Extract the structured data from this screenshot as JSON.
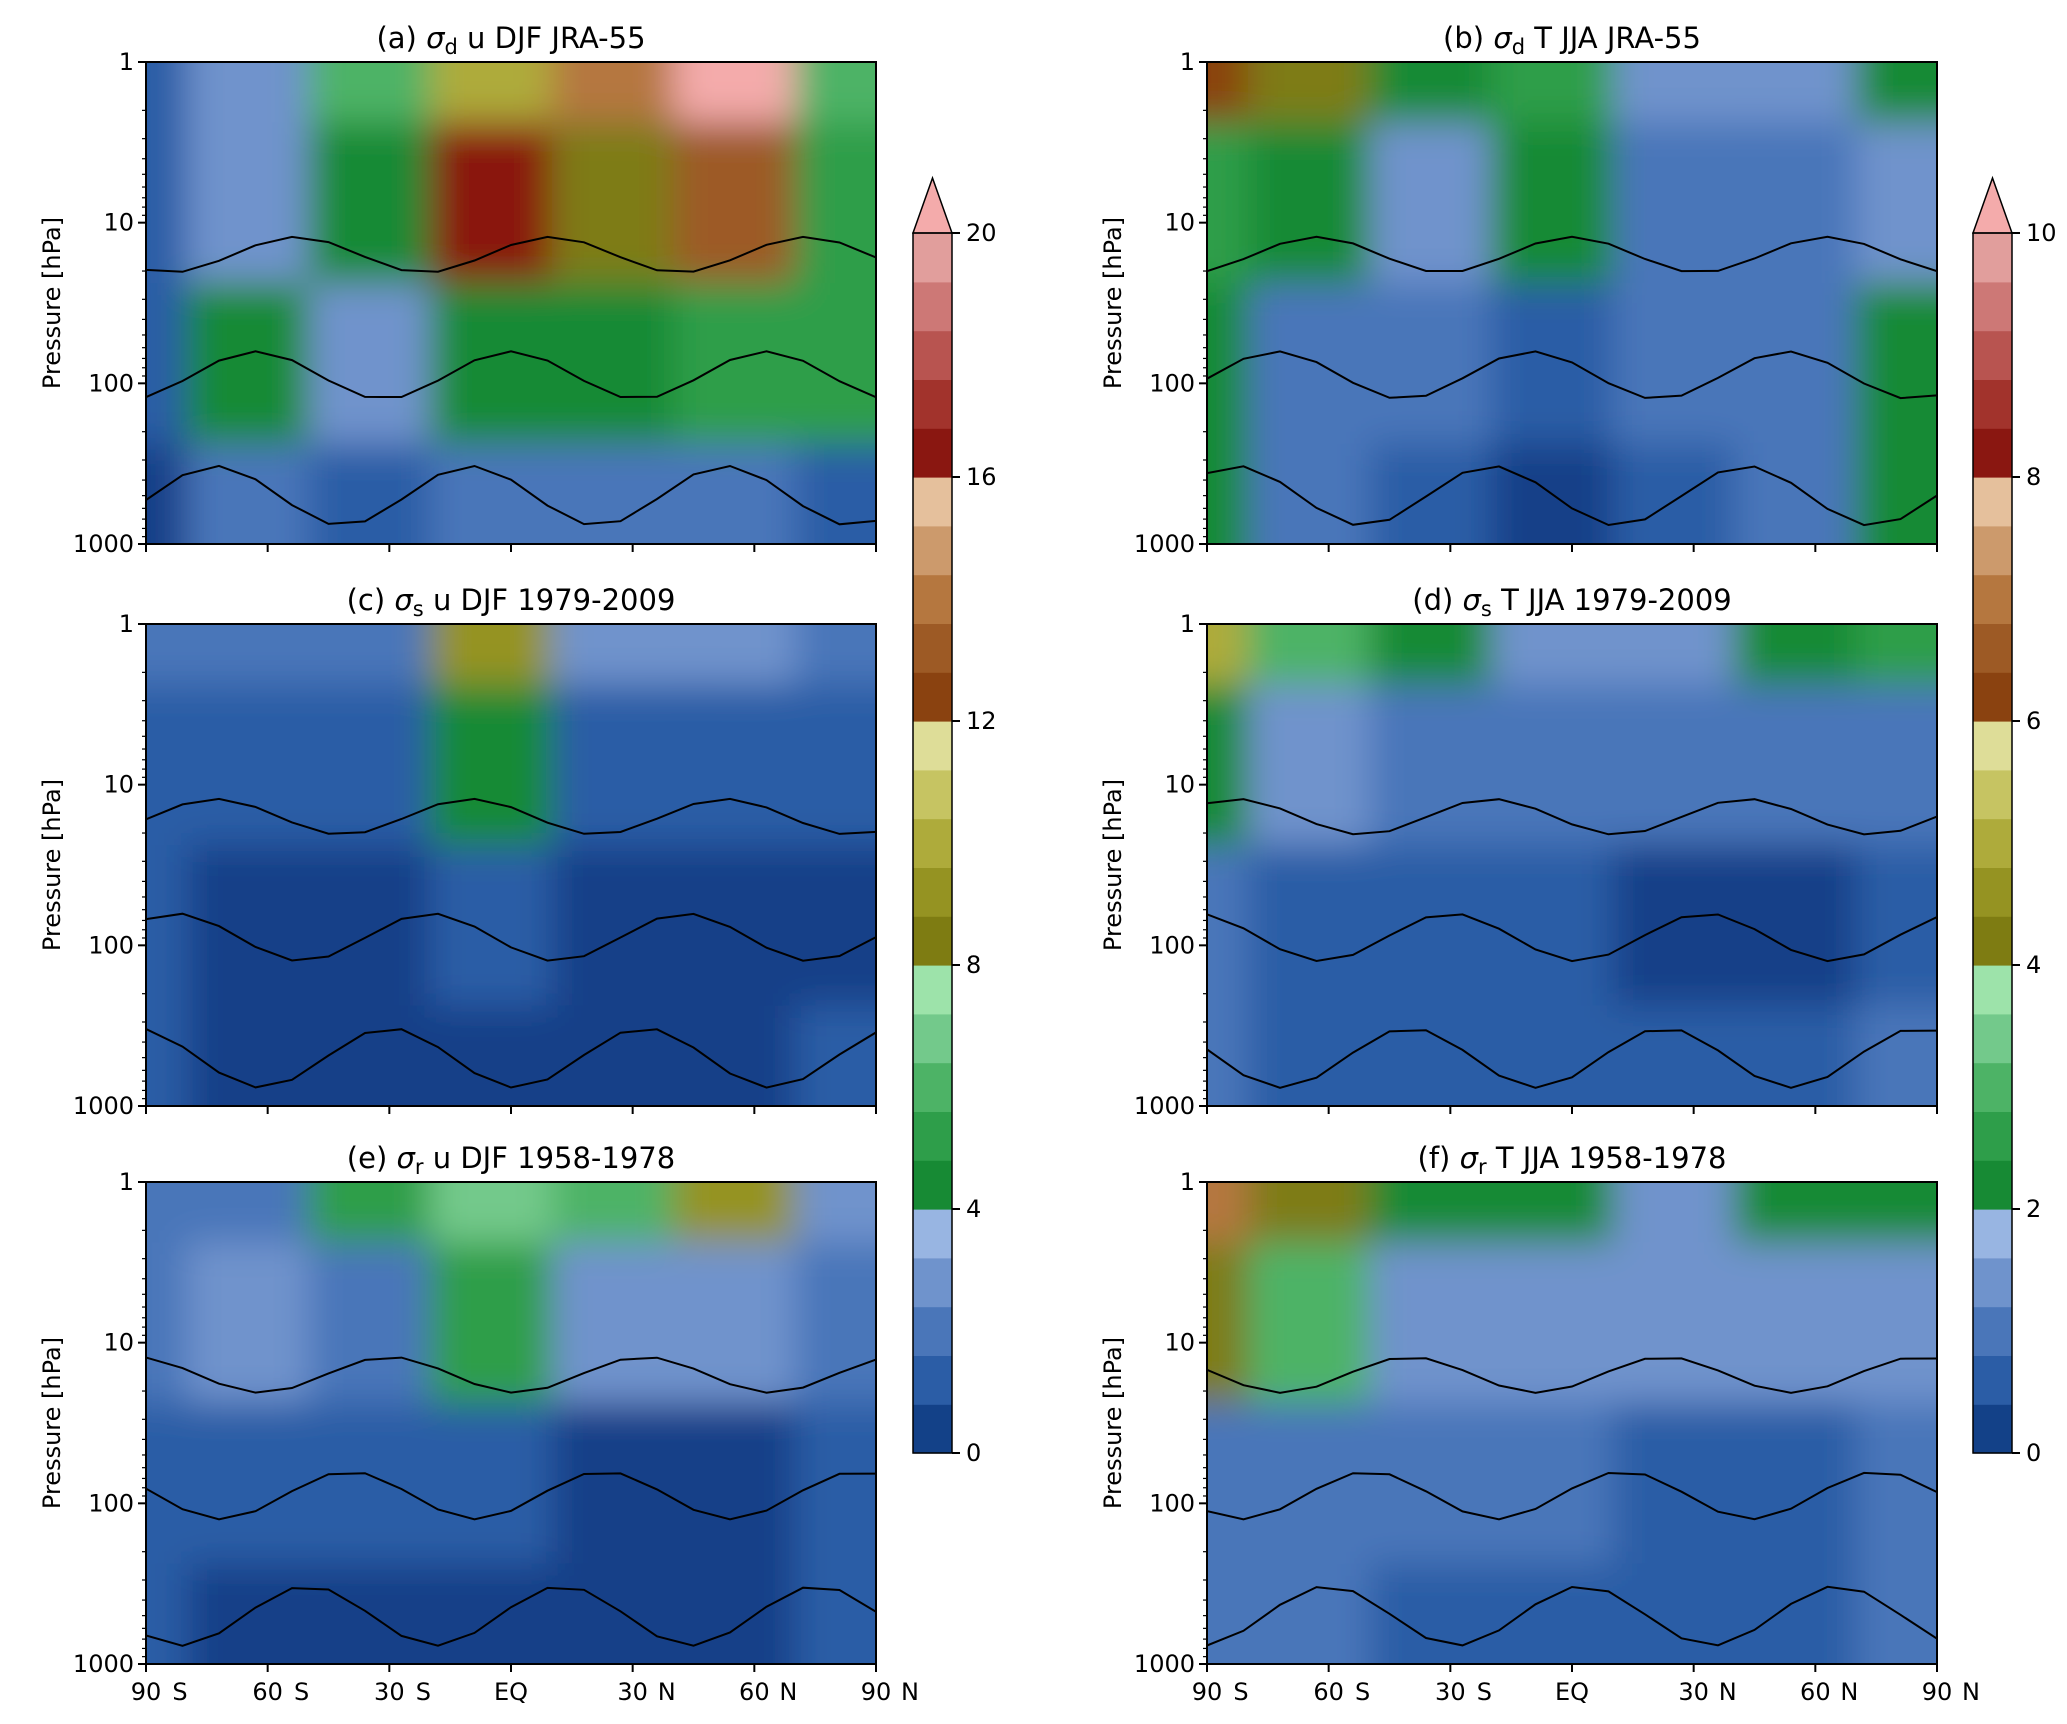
{
  "colors": {
    "levels": [
      "#134188",
      "#2b5da6",
      "#4a76b9",
      "#6f93cc",
      "#98b5e2",
      "#178a34",
      "#2e9e4a",
      "#4db366",
      "#73c98b",
      "#9de3aa",
      "#7e7c12",
      "#959322",
      "#aeab3b",
      "#c6c462",
      "#dedd98",
      "#8a4210",
      "#9d5a25",
      "#b5773f",
      "#cc9a6c",
      "#e5c09c",
      "#8a1711",
      "#a2332c",
      "#b85450",
      "#cd7876",
      "#e19e9c",
      "#f4abab"
    ],
    "contour": "#000000"
  },
  "chart_data": [
    {
      "id": "a",
      "type": "contourf",
      "title": "(a) σd u DJF JRA-55",
      "title_parts": {
        "prefix": "(a) ",
        "symbol": "σ",
        "subscript": "d",
        "suffix": " u DJF JRA-55"
      },
      "ylabel": "Pressure [hPa]",
      "yscale": "log",
      "ylim": [
        1000,
        1
      ],
      "yticks": [
        "1",
        "10",
        "100",
        "1000"
      ],
      "xlim": [
        -90,
        90
      ],
      "xticks": [],
      "colorbar": "u",
      "sample_field": {
        "lat": [
          -90,
          -60,
          -30,
          0,
          30,
          60,
          90
        ],
        "pressure_hPa": [
          1,
          10,
          100,
          1000
        ],
        "values": [
          [
            1.5,
            3,
            6,
            10,
            14,
            20,
            6
          ],
          [
            1.5,
            3,
            4,
            16,
            8,
            13,
            5
          ],
          [
            1.5,
            4,
            3,
            4,
            4,
            5,
            5
          ],
          [
            0.5,
            2,
            1,
            2,
            2,
            2,
            1
          ]
        ]
      }
    },
    {
      "id": "b",
      "type": "contourf",
      "title": "(b) σd T JJA JRA-55",
      "title_parts": {
        "prefix": "(b) ",
        "symbol": "σ",
        "subscript": "d",
        "suffix": " T JJA JRA-55"
      },
      "ylabel": "Pressure [hPa]",
      "yscale": "log",
      "ylim": [
        1000,
        1
      ],
      "yticks": [
        "1",
        "10",
        "100",
        "1000"
      ],
      "xlim": [
        -90,
        90
      ],
      "xticks": [],
      "colorbar": "T",
      "sample_field": {
        "lat": [
          -90,
          -60,
          -30,
          0,
          30,
          60,
          90
        ],
        "pressure_hPa": [
          1,
          10,
          100,
          1000
        ],
        "values": [
          [
            6,
            4,
            2,
            2.5,
            1.5,
            1.5,
            2
          ],
          [
            2.5,
            2,
            1.5,
            2,
            1,
            1,
            1.5
          ],
          [
            2,
            1,
            1,
            0.5,
            1,
            1,
            2
          ],
          [
            2,
            1,
            0.5,
            0.2,
            0.5,
            1,
            2
          ]
        ]
      }
    },
    {
      "id": "c",
      "type": "contourf",
      "title": "(c) σs u DJF 1979-2009",
      "title_parts": {
        "prefix": "(c) ",
        "symbol": "σ",
        "subscript": "s",
        "suffix": " u DJF 1979-2009"
      },
      "ylabel": "Pressure [hPa]",
      "yscale": "log",
      "ylim": [
        1000,
        1
      ],
      "yticks": [
        "1",
        "10",
        "100",
        "1000"
      ],
      "xlim": [
        -90,
        90
      ],
      "xticks": [],
      "colorbar": "u",
      "sample_field": {
        "lat": [
          -90,
          -60,
          -30,
          0,
          30,
          60,
          90
        ],
        "pressure_hPa": [
          1,
          10,
          100,
          1000
        ],
        "values": [
          [
            2,
            2,
            2,
            9,
            2.5,
            2.5,
            2
          ],
          [
            1.5,
            1,
            1,
            4,
            1.5,
            1,
            1
          ],
          [
            1,
            0.5,
            0.5,
            1.5,
            0.5,
            0.5,
            0.5
          ],
          [
            1,
            0.5,
            0.5,
            0.5,
            0.5,
            0.5,
            1
          ]
        ]
      }
    },
    {
      "id": "d",
      "type": "contourf",
      "title": "(d) σs T JJA 1979-2009",
      "title_parts": {
        "prefix": "(d) ",
        "symbol": "σ",
        "subscript": "s",
        "suffix": " T JJA 1979-2009"
      },
      "ylabel": "Pressure [hPa]",
      "yscale": "log",
      "ylim": [
        1000,
        1
      ],
      "yticks": [
        "1",
        "10",
        "100",
        "1000"
      ],
      "xlim": [
        -90,
        90
      ],
      "xticks": [],
      "colorbar": "T",
      "sample_field": {
        "lat": [
          -90,
          -60,
          -30,
          0,
          30,
          60,
          90
        ],
        "pressure_hPa": [
          1,
          10,
          100,
          1000
        ],
        "values": [
          [
            5,
            3,
            2,
            1.5,
            1.5,
            2,
            2.5
          ],
          [
            2,
            1.5,
            1,
            1,
            1,
            1,
            1
          ],
          [
            1,
            0.5,
            0.5,
            0.5,
            0.3,
            0.3,
            0.5
          ],
          [
            1,
            0.5,
            0.5,
            0.5,
            0.5,
            0.5,
            1
          ]
        ]
      }
    },
    {
      "id": "e",
      "type": "contourf",
      "title": "(e) σr u DJF 1958-1978",
      "title_parts": {
        "prefix": "(e) ",
        "symbol": "σ",
        "subscript": "r",
        "suffix": " u DJF 1958-1978"
      },
      "ylabel": "Pressure [hPa]",
      "yscale": "log",
      "ylim": [
        1000,
        1
      ],
      "yticks": [
        "1",
        "10",
        "100",
        "1000"
      ],
      "xlim": [
        -90,
        90
      ],
      "xticks": [
        "90",
        "S",
        "60",
        "S",
        "30",
        "S",
        "EQ",
        "30",
        "N",
        "60",
        "N",
        "90",
        "N"
      ],
      "colorbar": "u",
      "sample_field": {
        "lat": [
          -90,
          -60,
          -30,
          0,
          30,
          60,
          90
        ],
        "pressure_hPa": [
          1,
          10,
          100,
          1000
        ],
        "values": [
          [
            2,
            2,
            5,
            7,
            6,
            9,
            3
          ],
          [
            2,
            3,
            2,
            5,
            3,
            2.5,
            2
          ],
          [
            1.5,
            1.5,
            1,
            1,
            0.5,
            0.5,
            1
          ],
          [
            1,
            0.5,
            0.5,
            0.5,
            0.5,
            0.5,
            1
          ]
        ]
      }
    },
    {
      "id": "f",
      "type": "contourf",
      "title": "(f) σr T JJA 1958-1978",
      "title_parts": {
        "prefix": "(f) ",
        "symbol": "σ",
        "subscript": "r",
        "suffix": " T JJA 1958-1978"
      },
      "ylabel": "Pressure [hPa]",
      "yscale": "log",
      "ylim": [
        1000,
        1
      ],
      "yticks": [
        "1",
        "10",
        "100",
        "1000"
      ],
      "xlim": [
        -90,
        90
      ],
      "xticks": [
        "90",
        "S",
        "60",
        "S",
        "30",
        "S",
        "EQ",
        "30",
        "N",
        "60",
        "N",
        "90",
        "N"
      ],
      "colorbar": "T",
      "sample_field": {
        "lat": [
          -90,
          -60,
          -30,
          0,
          30,
          60,
          90
        ],
        "pressure_hPa": [
          1,
          10,
          100,
          1000
        ],
        "values": [
          [
            7,
            4,
            2,
            2,
            1.5,
            2,
            2
          ],
          [
            4,
            3,
            1.5,
            1.5,
            1.5,
            1.5,
            1.5
          ],
          [
            1,
            1,
            1,
            1,
            0.5,
            0.5,
            1
          ],
          [
            1,
            1,
            0.5,
            0.5,
            0.5,
            0.5,
            1
          ]
        ]
      }
    }
  ],
  "colorbars": {
    "u": {
      "min": 0,
      "max": 20,
      "extend": "max",
      "ticks": [
        "0",
        "4",
        "8",
        "12",
        "16",
        "20"
      ]
    },
    "T": {
      "min": 0,
      "max": 10,
      "extend": "max",
      "ticks": [
        "0",
        "2",
        "4",
        "6",
        "8",
        "10"
      ]
    }
  }
}
